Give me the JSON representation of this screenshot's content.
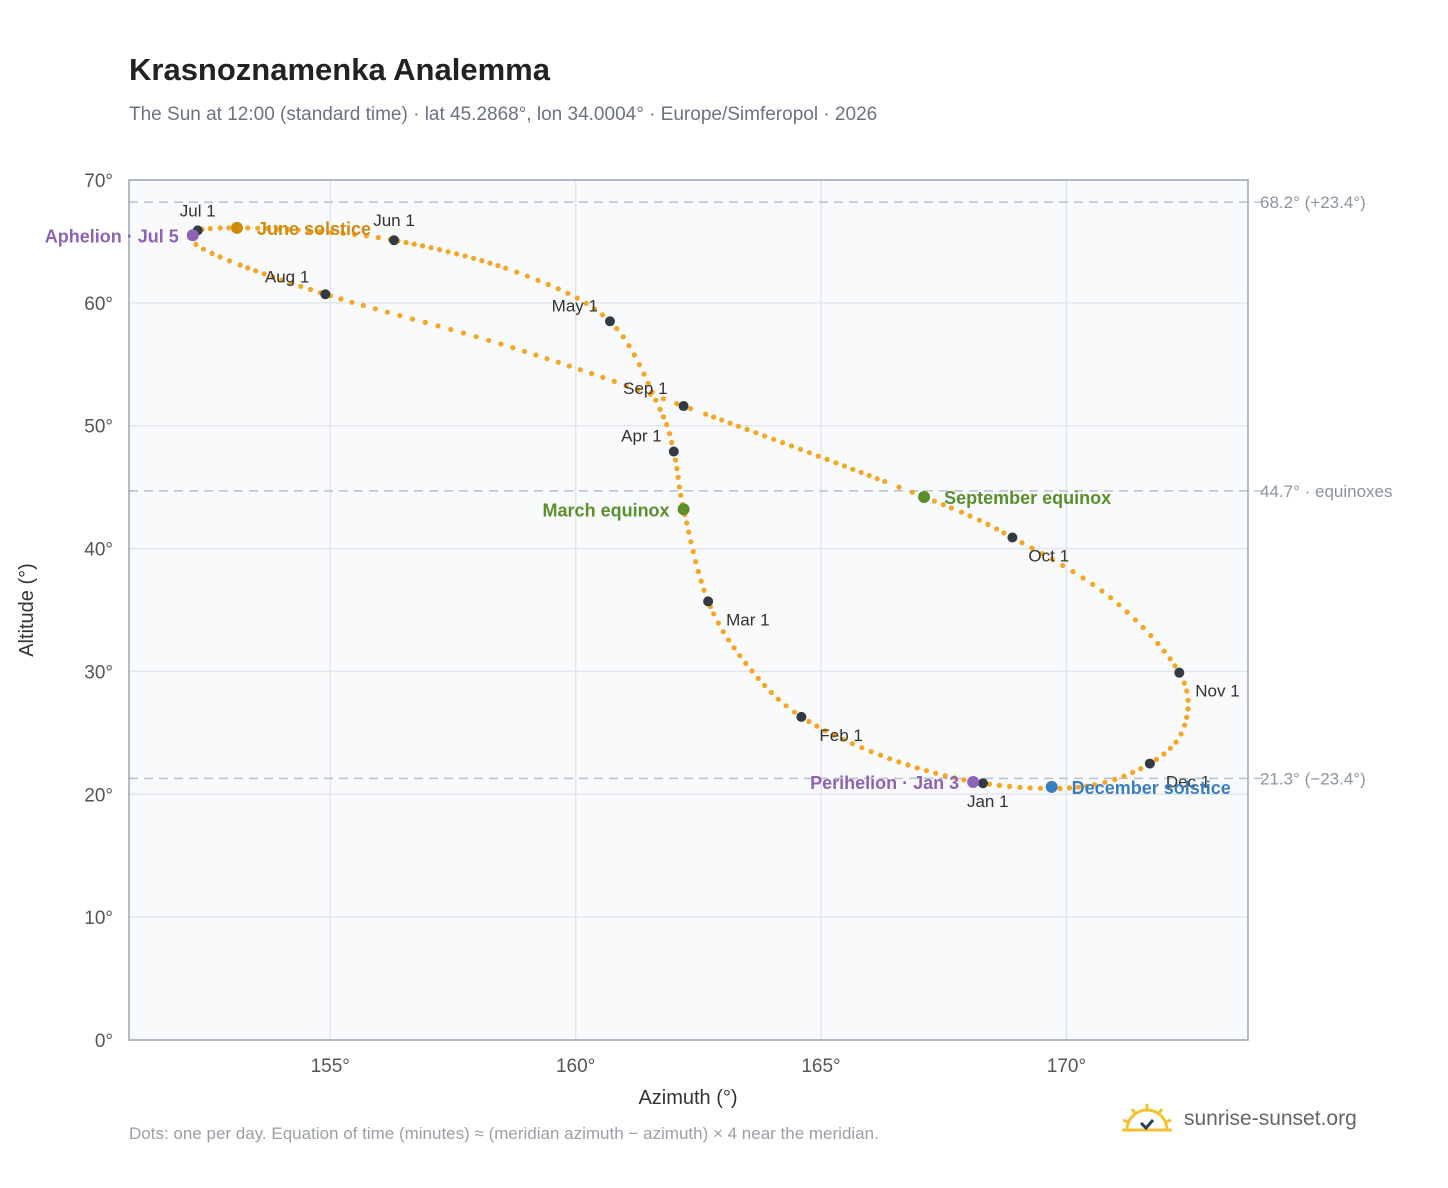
{
  "title": "Krasnoznamenka Analemma",
  "subtitle": "The Sun at 12:00 (standard time) · lat 45.2868°, lon 34.0004° · Europe/Simferopol · 2026",
  "footnote": "Dots: one per day. Equation of time (minutes) ≈ (meridian azimuth − azimuth) × 4 near the meridian.",
  "brand": "sunrise-sunset.org",
  "colors": {
    "path": "#f5a623",
    "month_dot": "#333a44",
    "june_solstice": "#d28a0c",
    "equinox": "#5a8f2c",
    "december_solstice": "#3a7ec2",
    "apsis": "#8e63b5",
    "grid": "#e3e7ec",
    "plot_bg": "#f8fafc",
    "frame": "#9aa6b4",
    "ref_line": "#b8c2cc"
  },
  "chart_data": {
    "type": "scatter",
    "xlabel": "Azimuth (°)",
    "ylabel": "Altitude (°)",
    "xlim": [
      150.9,
      173.7
    ],
    "ylim": [
      0,
      70
    ],
    "x_ticks": [
      {
        "value": 155,
        "label": "155°"
      },
      {
        "value": 160,
        "label": "160°"
      },
      {
        "value": 165,
        "label": "165°"
      },
      {
        "value": 170,
        "label": "170°"
      }
    ],
    "y_ticks": [
      {
        "value": 0,
        "label": "0°"
      },
      {
        "value": 10,
        "label": "10°"
      },
      {
        "value": 20,
        "label": "20°"
      },
      {
        "value": 30,
        "label": "30°"
      },
      {
        "value": 40,
        "label": "40°"
      },
      {
        "value": 50,
        "label": "50°"
      },
      {
        "value": 60,
        "label": "60°"
      },
      {
        "value": 70,
        "label": "70°"
      }
    ],
    "grid": true,
    "reference_lines": [
      {
        "y": 68.2,
        "label": "68.2° (+23.4°)"
      },
      {
        "y": 44.7,
        "label": "44.7° · equinoxes"
      },
      {
        "y": 21.3,
        "label": "21.3° (−23.4°)"
      }
    ],
    "months": [
      {
        "label": "Jan 1",
        "x": 168.3,
        "y": 20.9,
        "pos": "below"
      },
      {
        "label": "Feb 1",
        "x": 164.6,
        "y": 26.3,
        "pos": "right"
      },
      {
        "label": "Mar 1",
        "x": 162.7,
        "y": 35.7,
        "pos": "right"
      },
      {
        "label": "Apr 1",
        "x": 162.0,
        "y": 47.9,
        "pos": "left"
      },
      {
        "label": "May 1",
        "x": 160.7,
        "y": 58.5,
        "pos": "left"
      },
      {
        "label": "Jun 1",
        "x": 156.3,
        "y": 65.1,
        "pos": "above"
      },
      {
        "label": "Jul 1",
        "x": 152.3,
        "y": 65.9,
        "pos": "above"
      },
      {
        "label": "Aug 1",
        "x": 154.9,
        "y": 60.7,
        "pos": "left-above"
      },
      {
        "label": "Sep 1",
        "x": 162.2,
        "y": 51.6,
        "pos": "left-above"
      },
      {
        "label": "Oct 1",
        "x": 168.9,
        "y": 40.9,
        "pos": "right-below"
      },
      {
        "label": "Nov 1",
        "x": 172.3,
        "y": 29.9,
        "pos": "right-below"
      },
      {
        "label": "Dec 1",
        "x": 171.7,
        "y": 22.5,
        "pos": "right-below"
      }
    ],
    "events": [
      {
        "label": "June solstice",
        "x": 153.1,
        "y": 66.1,
        "color_key": "june_solstice",
        "pos": "right"
      },
      {
        "label": "Aphelion · Jul 5",
        "x": 152.2,
        "y": 65.5,
        "color_key": "apsis",
        "pos": "left"
      },
      {
        "label": "March equinox",
        "x": 162.2,
        "y": 43.2,
        "color_key": "equinox",
        "pos": "left"
      },
      {
        "label": "September equinox",
        "x": 167.1,
        "y": 44.2,
        "color_key": "equinox",
        "pos": "right"
      },
      {
        "label": "Perihelion · Jan 3",
        "x": 168.1,
        "y": 21.0,
        "color_key": "apsis",
        "pos": "left"
      },
      {
        "label": "December solstice",
        "x": 169.7,
        "y": 20.6,
        "color_key": "december_solstice",
        "pos": "right"
      }
    ],
    "path_points": [
      [
        168.3,
        20.9
      ],
      [
        166.4,
        22.9
      ],
      [
        164.6,
        26.3
      ],
      [
        163.5,
        30.5
      ],
      [
        162.7,
        35.7
      ],
      [
        162.2,
        43.2
      ],
      [
        162.0,
        47.9
      ],
      [
        161.7,
        51.5
      ],
      [
        160.7,
        58.5
      ],
      [
        158.8,
        62.5
      ],
      [
        156.3,
        65.1
      ],
      [
        154.0,
        66.0
      ],
      [
        152.3,
        65.9
      ],
      [
        152.5,
        64.2
      ],
      [
        154.9,
        60.7
      ],
      [
        158.6,
        56.5
      ],
      [
        162.2,
        51.6
      ],
      [
        167.1,
        44.2
      ],
      [
        168.9,
        40.9
      ],
      [
        170.9,
        36.0
      ],
      [
        172.3,
        29.9
      ],
      [
        172.4,
        25.5
      ],
      [
        171.7,
        22.5
      ],
      [
        170.3,
        20.6
      ],
      [
        168.3,
        20.9
      ]
    ]
  }
}
